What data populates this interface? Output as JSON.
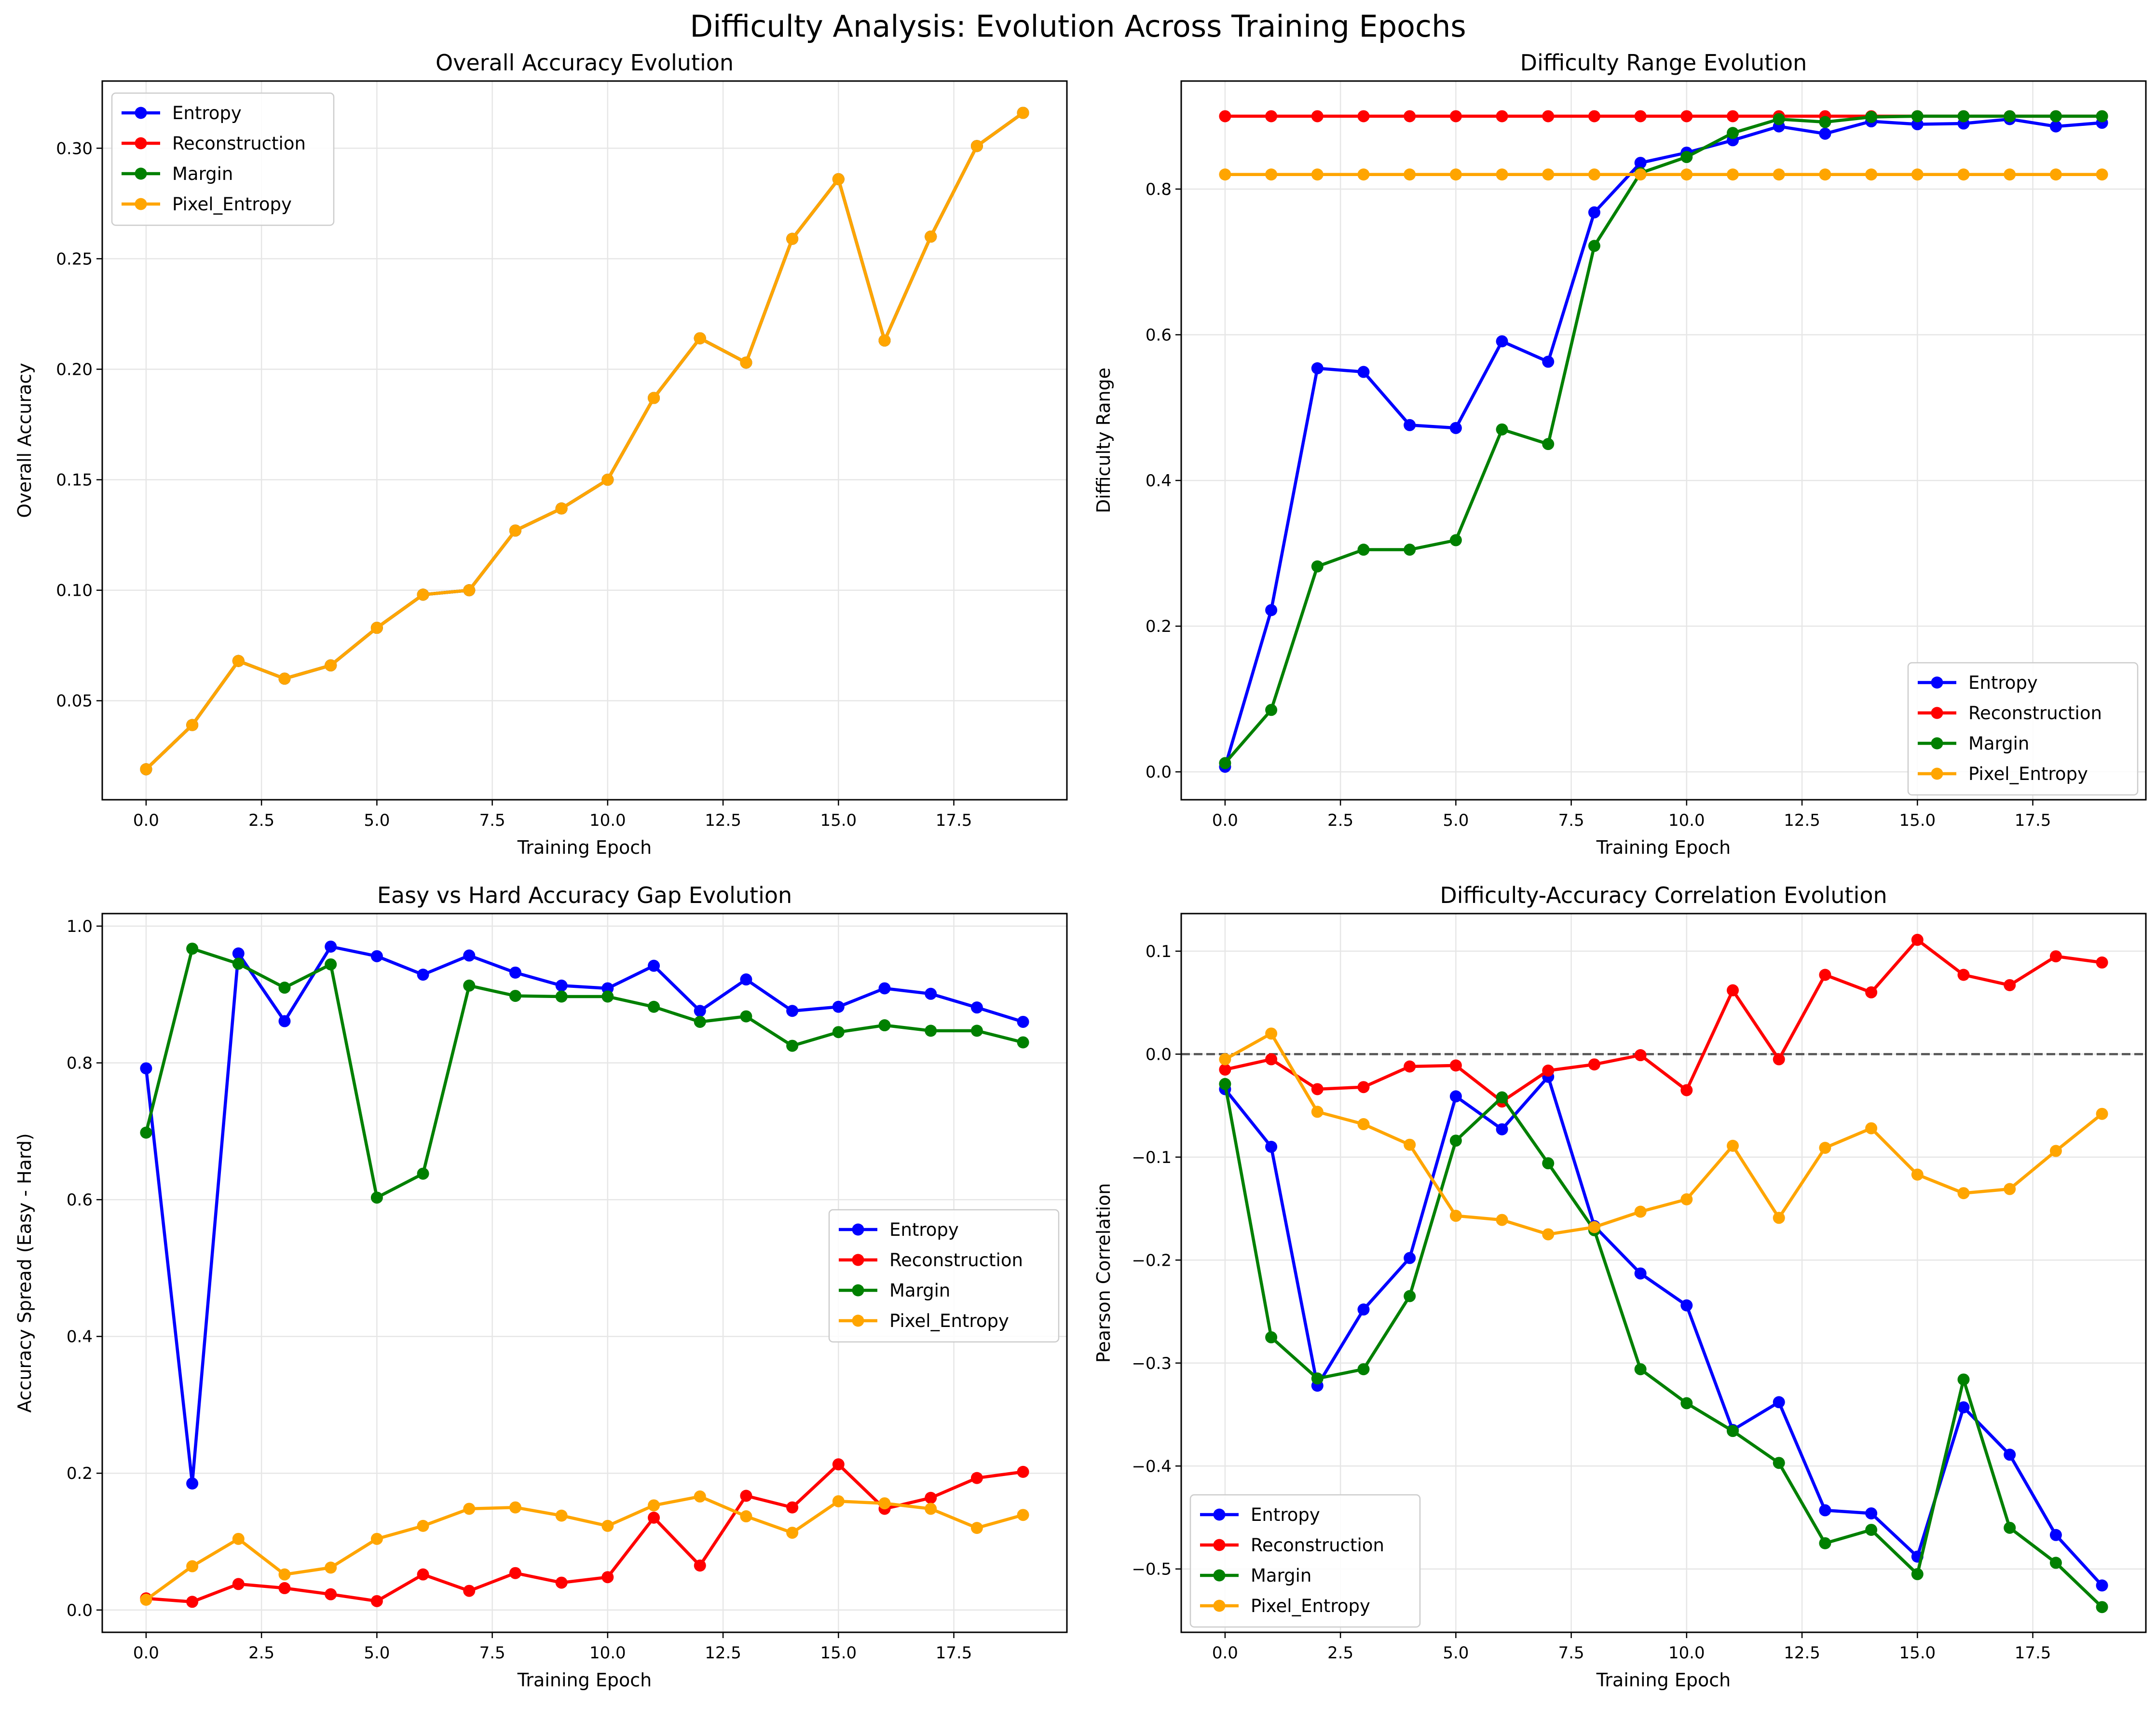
{
  "figure": {
    "suptitle": "Difficulty Analysis: Evolution Across Training Epochs"
  },
  "colors": {
    "Entropy": "#0000ff",
    "Reconstruction": "#ff0000",
    "Margin": "#008000",
    "Pixel_Entropy": "#ffa500",
    "grid": "#e6e6e6",
    "zero_line": "#555555"
  },
  "chart_data": [
    {
      "type": "line",
      "title": "Overall Accuracy Evolution",
      "xlabel": "Training Epoch",
      "ylabel": "Overall Accuracy",
      "grid": true,
      "legend_placement": "upper-left",
      "xlim": [
        -0.95,
        19.95
      ],
      "ylim": [
        0.0052,
        0.3304
      ],
      "xticks": [
        0,
        2.5,
        5,
        7.5,
        10,
        12.5,
        15,
        17.5
      ],
      "xtick_labels": [
        "0.0",
        "2.5",
        "5.0",
        "7.5",
        "10.0",
        "12.5",
        "15.0",
        "17.5"
      ],
      "yticks": [
        0.05,
        0.1,
        0.15,
        0.2,
        0.25,
        0.3
      ],
      "ytick_labels": [
        "0.05",
        "0.10",
        "0.15",
        "0.20",
        "0.25",
        "0.30"
      ],
      "x": [
        0,
        1,
        2,
        3,
        4,
        5,
        6,
        7,
        8,
        9,
        10,
        11,
        12,
        13,
        14,
        15,
        16,
        17,
        18,
        19
      ],
      "series": [
        {
          "name": "Entropy",
          "values": [
            0.019,
            0.039,
            0.068,
            0.06,
            0.066,
            0.083,
            0.098,
            0.1,
            0.127,
            0.137,
            0.15,
            0.187,
            0.214,
            0.203,
            0.259,
            0.286,
            0.213,
            0.26,
            0.301,
            0.316
          ]
        },
        {
          "name": "Reconstruction",
          "values": [
            0.019,
            0.039,
            0.068,
            0.06,
            0.066,
            0.083,
            0.098,
            0.1,
            0.127,
            0.137,
            0.15,
            0.187,
            0.214,
            0.203,
            0.259,
            0.286,
            0.213,
            0.26,
            0.301,
            0.316
          ]
        },
        {
          "name": "Margin",
          "values": [
            0.019,
            0.039,
            0.068,
            0.06,
            0.066,
            0.083,
            0.098,
            0.1,
            0.127,
            0.137,
            0.15,
            0.187,
            0.214,
            0.203,
            0.259,
            0.286,
            0.213,
            0.26,
            0.301,
            0.316
          ]
        },
        {
          "name": "Pixel_Entropy",
          "values": [
            0.019,
            0.039,
            0.068,
            0.06,
            0.066,
            0.083,
            0.098,
            0.1,
            0.127,
            0.137,
            0.15,
            0.187,
            0.214,
            0.203,
            0.259,
            0.286,
            0.213,
            0.26,
            0.301,
            0.316
          ]
        }
      ]
    },
    {
      "type": "line",
      "title": "Difficulty Range Evolution",
      "xlabel": "Training Epoch",
      "ylabel": "Difficulty Range",
      "grid": true,
      "legend_placement": "lower-right",
      "xlim": [
        -0.95,
        19.95
      ],
      "ylim": [
        -0.0383,
        0.9483
      ],
      "xticks": [
        0,
        2.5,
        5,
        7.5,
        10,
        12.5,
        15,
        17.5
      ],
      "xtick_labels": [
        "0.0",
        "2.5",
        "5.0",
        "7.5",
        "10.0",
        "12.5",
        "15.0",
        "17.5"
      ],
      "yticks": [
        0.0,
        0.2,
        0.4,
        0.6,
        0.8
      ],
      "ytick_labels": [
        "0.0",
        "0.2",
        "0.4",
        "0.6",
        "0.8"
      ],
      "x": [
        0,
        1,
        2,
        3,
        4,
        5,
        6,
        7,
        8,
        9,
        10,
        11,
        12,
        13,
        14,
        15,
        16,
        17,
        18,
        19
      ],
      "series": [
        {
          "name": "Entropy",
          "values": [
            0.007,
            0.222,
            0.554,
            0.549,
            0.476,
            0.472,
            0.591,
            0.563,
            0.768,
            0.836,
            0.85,
            0.867,
            0.886,
            0.876,
            0.893,
            0.889,
            0.89,
            0.896,
            0.886,
            0.891
          ]
        },
        {
          "name": "Reconstruction",
          "values": [
            0.9,
            0.9,
            0.9,
            0.9,
            0.9,
            0.9,
            0.9,
            0.9,
            0.9,
            0.9,
            0.9,
            0.9,
            0.9,
            0.9,
            0.9,
            0.9,
            0.9,
            0.9,
            0.9,
            0.9
          ]
        },
        {
          "name": "Margin",
          "values": [
            0.012,
            0.085,
            0.282,
            0.305,
            0.305,
            0.318,
            0.47,
            0.45,
            0.722,
            0.822,
            0.844,
            0.877,
            0.896,
            0.892,
            0.899,
            0.9,
            0.9,
            0.9,
            0.9,
            0.9
          ]
        },
        {
          "name": "Pixel_Entropy",
          "values": [
            0.82,
            0.82,
            0.82,
            0.82,
            0.82,
            0.82,
            0.82,
            0.82,
            0.82,
            0.82,
            0.82,
            0.82,
            0.82,
            0.82,
            0.82,
            0.82,
            0.82,
            0.82,
            0.82,
            0.82
          ]
        }
      ]
    },
    {
      "type": "line",
      "title": "Easy vs Hard Accuracy Gap Evolution",
      "xlabel": "Training Epoch",
      "ylabel": "Accuracy Spread (Easy - Hard)",
      "grid": true,
      "legend_placement": "center-right",
      "xlim": [
        -0.95,
        19.95
      ],
      "ylim": [
        -0.0326,
        1.0183
      ],
      "xticks": [
        0,
        2.5,
        5,
        7.5,
        10,
        12.5,
        15,
        17.5
      ],
      "xtick_labels": [
        "0.0",
        "2.5",
        "5.0",
        "7.5",
        "10.0",
        "12.5",
        "15.0",
        "17.5"
      ],
      "yticks": [
        0.0,
        0.2,
        0.4,
        0.6,
        0.8,
        1.0
      ],
      "ytick_labels": [
        "0.0",
        "0.2",
        "0.4",
        "0.6",
        "0.8",
        "1.0"
      ],
      "x": [
        0,
        1,
        2,
        3,
        4,
        5,
        6,
        7,
        8,
        9,
        10,
        11,
        12,
        13,
        14,
        15,
        16,
        17,
        18,
        19
      ],
      "series": [
        {
          "name": "Entropy",
          "values": [
            0.792,
            0.185,
            0.96,
            0.861,
            0.97,
            0.956,
            0.929,
            0.957,
            0.932,
            0.913,
            0.909,
            0.942,
            0.876,
            0.922,
            0.876,
            0.882,
            0.909,
            0.901,
            0.881,
            0.86
          ]
        },
        {
          "name": "Reconstruction",
          "values": [
            0.017,
            0.012,
            0.038,
            0.032,
            0.023,
            0.013,
            0.052,
            0.028,
            0.054,
            0.04,
            0.048,
            0.135,
            0.065,
            0.167,
            0.15,
            0.213,
            0.148,
            0.164,
            0.193,
            0.202
          ]
        },
        {
          "name": "Margin",
          "values": [
            0.698,
            0.967,
            0.945,
            0.91,
            0.944,
            0.603,
            0.638,
            0.913,
            0.898,
            0.897,
            0.897,
            0.882,
            0.86,
            0.868,
            0.825,
            0.845,
            0.855,
            0.847,
            0.847,
            0.83
          ]
        },
        {
          "name": "Pixel_Entropy",
          "values": [
            0.015,
            0.064,
            0.104,
            0.052,
            0.062,
            0.104,
            0.123,
            0.148,
            0.15,
            0.138,
            0.123,
            0.153,
            0.166,
            0.137,
            0.113,
            0.159,
            0.156,
            0.148,
            0.12,
            0.139
          ]
        }
      ]
    },
    {
      "type": "line",
      "title": "Difficulty-Accuracy Correlation Evolution",
      "xlabel": "Training Epoch",
      "ylabel": "Pearson Correlation",
      "grid": true,
      "legend_placement": "lower-left",
      "reference_line_y": 0.0,
      "xlim": [
        -0.95,
        19.95
      ],
      "ylim": [
        -0.5615,
        0.1365
      ],
      "xticks": [
        0,
        2.5,
        5,
        7.5,
        10,
        12.5,
        15,
        17.5
      ],
      "xtick_labels": [
        "0.0",
        "2.5",
        "5.0",
        "7.5",
        "10.0",
        "12.5",
        "15.0",
        "17.5"
      ],
      "yticks": [
        -0.5,
        -0.4,
        -0.3,
        -0.2,
        -0.1,
        0.0,
        0.1
      ],
      "ytick_labels": [
        "−0.5",
        "−0.4",
        "−0.3",
        "−0.2",
        "−0.1",
        "0.0",
        "0.1"
      ],
      "x": [
        0,
        1,
        2,
        3,
        4,
        5,
        6,
        7,
        8,
        9,
        10,
        11,
        12,
        13,
        14,
        15,
        16,
        17,
        18,
        19
      ],
      "series": [
        {
          "name": "Entropy",
          "values": [
            -0.034,
            -0.09,
            -0.322,
            -0.248,
            -0.198,
            -0.041,
            -0.073,
            -0.022,
            -0.167,
            -0.213,
            -0.244,
            -0.365,
            -0.338,
            -0.443,
            -0.446,
            -0.488,
            -0.343,
            -0.389,
            -0.467,
            -0.516
          ]
        },
        {
          "name": "Reconstruction",
          "values": [
            -0.015,
            -0.005,
            -0.034,
            -0.032,
            -0.012,
            -0.011,
            -0.046,
            -0.016,
            -0.01,
            -0.001,
            -0.035,
            0.062,
            -0.005,
            0.077,
            0.06,
            0.111,
            0.077,
            0.067,
            0.095,
            0.089
          ]
        },
        {
          "name": "Margin",
          "values": [
            -0.029,
            -0.275,
            -0.315,
            -0.306,
            -0.235,
            -0.084,
            -0.042,
            -0.106,
            -0.171,
            -0.306,
            -0.339,
            -0.366,
            -0.397,
            -0.475,
            -0.462,
            -0.505,
            -0.316,
            -0.46,
            -0.494,
            -0.537
          ]
        },
        {
          "name": "Pixel_Entropy",
          "values": [
            -0.005,
            0.02,
            -0.056,
            -0.068,
            -0.088,
            -0.157,
            -0.161,
            -0.175,
            -0.168,
            -0.153,
            -0.141,
            -0.089,
            -0.159,
            -0.091,
            -0.072,
            -0.117,
            -0.135,
            -0.131,
            -0.094,
            -0.058
          ]
        }
      ]
    }
  ]
}
